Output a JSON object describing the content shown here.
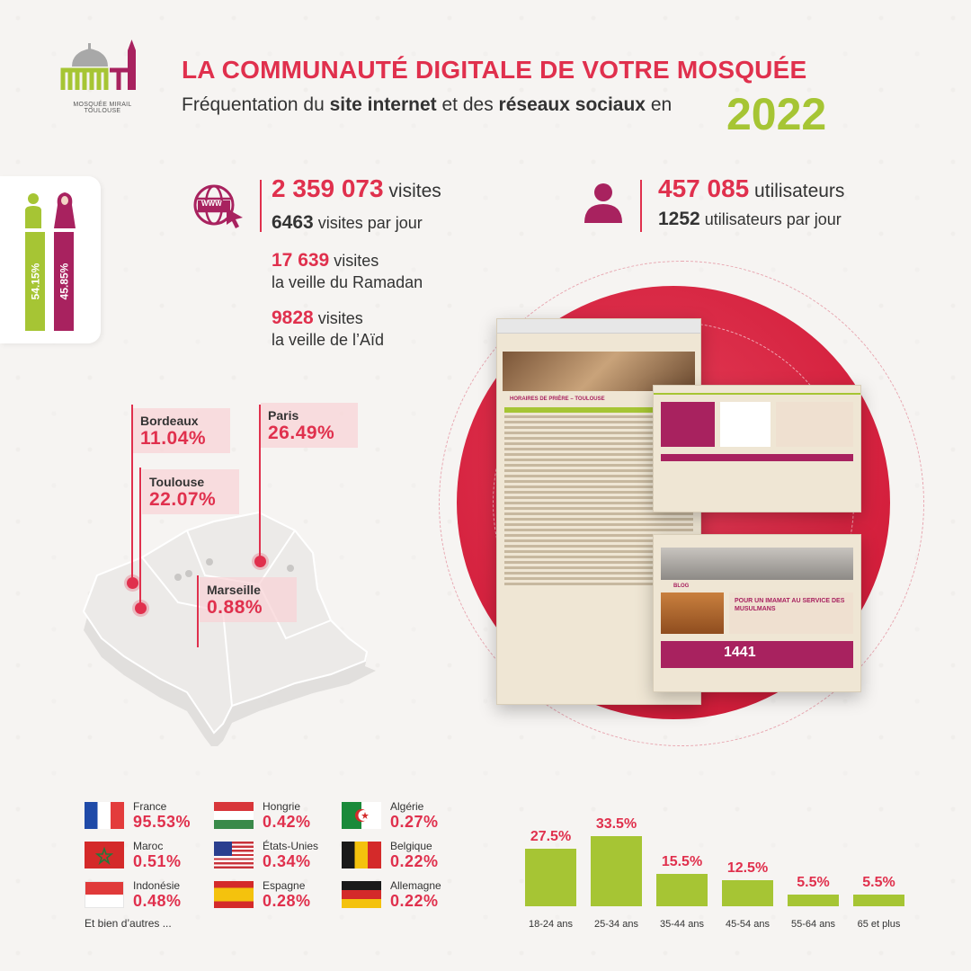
{
  "header": {
    "title": "LA COMMUNAUTÉ DIGITALE DE VOTRE MOSQUÉE",
    "subtitle_1": "Fréquentation du ",
    "subtitle_2": "site internet",
    "subtitle_3": " et des ",
    "subtitle_4": "réseaux sociaux",
    "subtitle_5": " en",
    "year": "2022"
  },
  "logo": {
    "letters": "MMT",
    "caption": "MOSQUÉE MIRAIL TOULOUSE"
  },
  "gender": {
    "male_pct": "54.15%",
    "female_pct": "45.85%"
  },
  "website": {
    "visits_value": "2 359 073",
    "visits_unit": " visites",
    "per_day_value": "6463",
    "per_day_unit": " visites par jour",
    "ramadan_value": "17 639",
    "ramadan_unit": " visites",
    "ramadan_label": "la veille du Ramadan",
    "aid_value": "9828",
    "aid_unit": " visites",
    "aid_label": "la veille de l’Aïd",
    "www_label": "WWW"
  },
  "users": {
    "total_value": "457 085",
    "total_unit": " utilisateurs",
    "per_day_value": "1252",
    "per_day_unit": " utilisateurs par jour"
  },
  "cities": [
    {
      "name": "Bordeaux",
      "pct": "11.04%"
    },
    {
      "name": "Paris",
      "pct": "26.49%"
    },
    {
      "name": "Toulouse",
      "pct": "22.07%"
    },
    {
      "name": "Marseille",
      "pct": "0.88%"
    }
  ],
  "countries": [
    {
      "name": "France",
      "pct": "95.53%"
    },
    {
      "name": "Maroc",
      "pct": "0.51%"
    },
    {
      "name": "Indonésie",
      "pct": "0.48%"
    },
    {
      "name": "Hongrie",
      "pct": "0.42%"
    },
    {
      "name": "États-Unies",
      "pct": "0.34%"
    },
    {
      "name": "Espagne",
      "pct": "0.28%"
    },
    {
      "name": "Algérie",
      "pct": "0.27%"
    },
    {
      "name": "Belgique",
      "pct": "0.22%"
    },
    {
      "name": "Allemagne",
      "pct": "0.22%"
    }
  ],
  "countries_more": "Et bien d’autres ...",
  "mockups": {
    "page1_heading": "HORAIRES DE PRIÈRE – TOULOUSE",
    "page3_heading": "BLOG",
    "page3_banner": "POUR UN IMAMAT AU SERVICE DES MUSULMANS",
    "page3_number": "1441"
  },
  "colors": {
    "red": "#e0304d",
    "green": "#a6c534",
    "maroon": "#a8225f"
  },
  "chart_data": {
    "type": "bar",
    "categories": [
      "18-24 ans",
      "25-34 ans",
      "35-44 ans",
      "45-54 ans",
      "55-64 ans",
      "65 et plus"
    ],
    "values": [
      27.5,
      33.5,
      15.5,
      12.5,
      5.5,
      5.5
    ],
    "value_labels": [
      "27.5%",
      "33.5%",
      "15.5%",
      "12.5%",
      "5.5%",
      "5.5%"
    ],
    "title": "",
    "xlabel": "",
    "ylabel": "",
    "ylim": [
      0,
      35
    ],
    "grid": false
  }
}
